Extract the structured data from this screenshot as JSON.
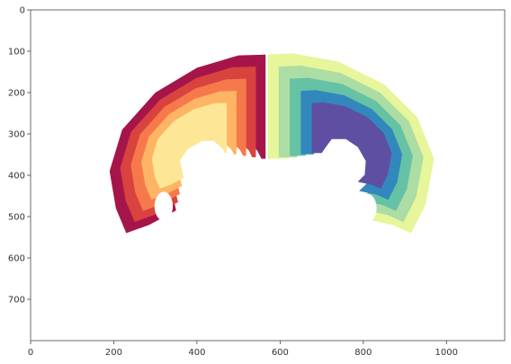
{
  "chart_data": {
    "type": "heatmap",
    "title": "",
    "xlabel": "",
    "ylabel": "",
    "xlim": [
      0,
      1140
    ],
    "ylim": [
      800,
      0
    ],
    "y_inverted": true,
    "grid": false,
    "legend": "none",
    "x_ticks": [
      0,
      200,
      400,
      600,
      800,
      1000
    ],
    "x_tick_labels": [
      "0",
      "200",
      "400",
      "600",
      "800",
      "1000"
    ],
    "y_ticks": [
      0,
      100,
      200,
      300,
      400,
      500,
      600,
      700
    ],
    "y_tick_labels": [
      "0",
      "100",
      "200",
      "300",
      "400",
      "500",
      "600",
      "700"
    ],
    "image_description_data": {
      "left_hemisphere": {
        "layers": [
          {
            "color": "#a61549"
          },
          {
            "color": "#d8433f"
          },
          {
            "color": "#f6794c"
          },
          {
            "color": "#fdb464"
          },
          {
            "color": "#fde797"
          }
        ],
        "outer_boundary": [
          [
            565,
            108
          ],
          [
            500,
            110
          ],
          [
            400,
            140
          ],
          [
            300,
            200
          ],
          [
            220,
            290
          ],
          [
            190,
            390
          ],
          [
            205,
            480
          ],
          [
            230,
            540
          ],
          [
            285,
            520
          ],
          [
            350,
            485
          ],
          [
            330,
            400
          ],
          [
            370,
            340
          ],
          [
            440,
            300
          ],
          [
            500,
            300
          ],
          [
            545,
            340
          ],
          [
            555,
            360
          ],
          [
            565,
            360
          ]
        ],
        "hole": {
          "center": [
            320,
            475
          ],
          "radius_x": 22,
          "radius_y": 35
        }
      },
      "right_hemisphere": {
        "layers": [
          {
            "color": "#e7f59b"
          },
          {
            "color": "#abdda4"
          },
          {
            "color": "#66c2a5"
          },
          {
            "color": "#3288bd"
          },
          {
            "color": "#5e4fa2"
          }
        ],
        "outer_boundary": [
          [
            570,
            108
          ],
          [
            630,
            105
          ],
          [
            740,
            125
          ],
          [
            850,
            180
          ],
          [
            930,
            260
          ],
          [
            970,
            360
          ],
          [
            950,
            470
          ],
          [
            915,
            540
          ],
          [
            870,
            520
          ],
          [
            800,
            505
          ],
          [
            835,
            470
          ],
          [
            840,
            400
          ],
          [
            800,
            330
          ],
          [
            740,
            290
          ],
          [
            670,
            290
          ],
          [
            640,
            330
          ],
          [
            620,
            360
          ],
          [
            570,
            360
          ]
        ],
        "hole": {
          "center": [
            810,
            480
          ],
          "radius_x": 22,
          "radius_y": 35
        }
      }
    }
  }
}
